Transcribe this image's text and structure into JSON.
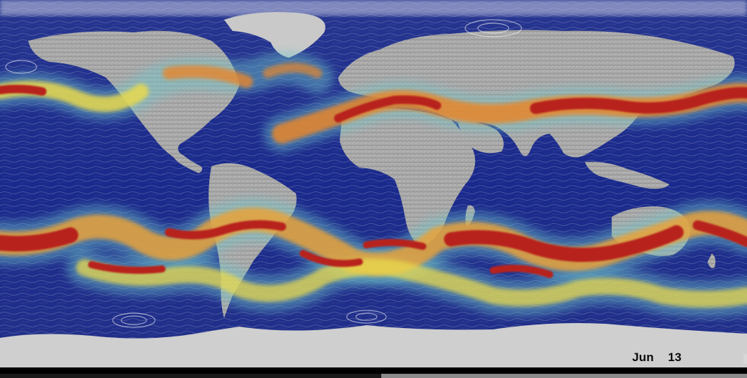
{
  "map": {
    "colors": {
      "ocean": "#1a2a8c",
      "ocean_dark": "#121d6e",
      "land": "#a6a6a6",
      "ice": "#d9d9d9",
      "jet_core": "#b8221b",
      "jet_mid": "#e8862a",
      "jet_edge": "#e9d94c",
      "jet_outer": "#6fc6c9"
    }
  },
  "date_overlay": {
    "month": "Jun",
    "day": "13"
  },
  "playback": {
    "progress": 0.51
  }
}
